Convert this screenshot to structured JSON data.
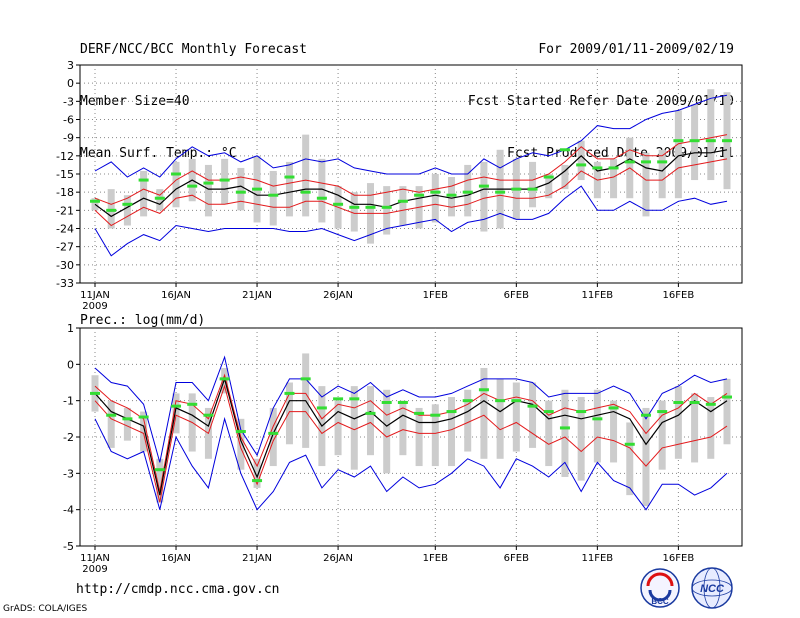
{
  "header": {
    "line1": "DERF/NCC/BCC Monthly Forecast",
    "line2": "Member Size=40",
    "line3": "Mean Surf. Temp.: °C",
    "right1": "For 2009/01/11-2009/02/19",
    "right2": "Fcst Started Refer Date 2009/01/10",
    "right3": "Fcst Produced Date 2009/01/11"
  },
  "footer": {
    "url": "http://cmdp.ncc.cma.gov.cn",
    "credit": "GrADS: COLA/IGES",
    "logo_left_text": "BCC",
    "logo_right_text": "NCC"
  },
  "colors": {
    "ensemble_mean": "#000000",
    "spread": "#e31a1c",
    "extreme": "#0000dd",
    "observed": "#33dd33",
    "box": "#cccccc",
    "grid": "#888888"
  },
  "chart_data": [
    {
      "type": "line",
      "title": "Mean Surf. Temp.: °C",
      "x_start": "11JAN 2009",
      "n_days": 40,
      "xticks": [
        "11JAN",
        "16JAN",
        "21JAN",
        "26JAN",
        "1FEB",
        "6FEB",
        "11FEB",
        "16FEB"
      ],
      "xtick_year": "2009",
      "xtick_index": [
        0,
        5,
        10,
        15,
        21,
        26,
        31,
        36
      ],
      "ylim": [
        -33,
        3
      ],
      "yticks": [
        3,
        0,
        -3,
        -6,
        -9,
        -12,
        -15,
        -18,
        -21,
        -24,
        -27,
        -30,
        -33
      ],
      "series": [
        {
          "name": "max",
          "color": "#0000dd",
          "values": [
            -14.5,
            -13,
            -15.5,
            -14,
            -15.5,
            -12.5,
            -10.5,
            -12,
            -11.5,
            -13,
            -12,
            -14,
            -13.5,
            -12.5,
            -13,
            -12.5,
            -14,
            -14.5,
            -15,
            -15,
            -15,
            -14,
            -15,
            -15,
            -12.5,
            -14,
            -12.5,
            -11.5,
            -12,
            -11,
            -9.5,
            -7,
            -7.5,
            -7.5,
            -6,
            -5,
            -4.5,
            -3.5,
            -2.5,
            -2
          ]
        },
        {
          "name": "upper",
          "color": "#e31a1c",
          "values": [
            -19,
            -20,
            -19,
            -17.5,
            -18.5,
            -16,
            -14.5,
            -16,
            -16,
            -15.5,
            -16,
            -17,
            -16.5,
            -16,
            -16.5,
            -17,
            -18.5,
            -18.5,
            -18,
            -17.5,
            -18,
            -17.5,
            -17,
            -16,
            -15.5,
            -16,
            -16,
            -16,
            -15,
            -13,
            -10.5,
            -12.5,
            -12.5,
            -11,
            -12,
            -12,
            -10,
            -9.5,
            -9,
            -8.5
          ]
        },
        {
          "name": "mean",
          "color": "#000000",
          "values": [
            -20,
            -22,
            -20.5,
            -19,
            -20,
            -17.5,
            -16,
            -17.5,
            -17.5,
            -17,
            -18.5,
            -18.5,
            -18,
            -17.5,
            -17.5,
            -18.5,
            -20,
            -20,
            -20.5,
            -19.5,
            -19,
            -18.5,
            -19,
            -18.5,
            -17.5,
            -17.5,
            -17.5,
            -17.5,
            -16.5,
            -14.5,
            -12,
            -14.5,
            -14,
            -12.5,
            -14,
            -14.5,
            -12,
            -11.5,
            -11.5,
            -11
          ]
        },
        {
          "name": "lower",
          "color": "#e31a1c",
          "values": [
            -21,
            -23.5,
            -22,
            -20.5,
            -21.5,
            -19,
            -18.5,
            -20,
            -20,
            -19.5,
            -20,
            -20.5,
            -20.5,
            -19.5,
            -19.5,
            -20.5,
            -21.5,
            -21.5,
            -21.5,
            -21,
            -20.5,
            -20,
            -20.5,
            -20,
            -19,
            -18.5,
            -19,
            -19,
            -18.5,
            -17,
            -14.5,
            -16,
            -15.5,
            -14,
            -16,
            -16,
            -14,
            -13.5,
            -13,
            -12.5
          ]
        },
        {
          "name": "min",
          "color": "#0000dd",
          "values": [
            -24,
            -28.5,
            -26.5,
            -25,
            -26,
            -23.5,
            -24,
            -24.5,
            -24,
            -24,
            -24,
            -24,
            -24.5,
            -24.5,
            -24,
            -25,
            -26,
            -25,
            -24,
            -23.5,
            -23,
            -22.5,
            -24.5,
            -23,
            -22.5,
            -21.5,
            -22.5,
            -22.5,
            -21.5,
            -19,
            -17,
            -21,
            -21,
            -19.5,
            -21,
            -21,
            -19.5,
            -19,
            -20,
            -19.5
          ]
        },
        {
          "name": "observed",
          "color": "#33dd33",
          "values": [
            -19.5,
            -21,
            -20,
            -16,
            -19,
            -15,
            -17,
            -16.5,
            -16,
            -18,
            -17.5,
            -18.5,
            -15.5,
            -18,
            -19,
            -20,
            -20.5,
            -20.5,
            -20.5,
            -19.5,
            -18.5,
            -18,
            -18.5,
            -18,
            -17,
            -18,
            -17.5,
            -17.5,
            -15.5,
            -11,
            -13.5,
            -14,
            -14,
            -13,
            -13,
            -13,
            -9.5,
            -9.5,
            -9.5,
            -9.5
          ]
        },
        {
          "name": "box_top",
          "color": "#cccccc",
          "values": [
            -19,
            -17.5,
            -18.5,
            -14.5,
            -17.5,
            -13,
            -12.5,
            -13.5,
            -12.5,
            -14,
            -12,
            -14.5,
            -13,
            -8.5,
            -12.5,
            -17,
            -18,
            -16.5,
            -17,
            -17,
            -17,
            -15,
            -15.5,
            -13.5,
            -13,
            -11,
            -12.5,
            -13,
            -15,
            -13.5,
            -9.5,
            -13,
            -12.5,
            -9,
            -11.5,
            -11,
            -4.5,
            -3.5,
            -1,
            -1.5
          ]
        },
        {
          "name": "box_bottom",
          "color": "#cccccc",
          "values": [
            -21,
            -24,
            -23.5,
            -22,
            -21,
            -20.5,
            -19.5,
            -22,
            -20,
            -21,
            -23,
            -23.5,
            -22,
            -22,
            -23,
            -24,
            -24.5,
            -26.5,
            -25,
            -23.5,
            -24,
            -23,
            -22,
            -22,
            -24.5,
            -24,
            -22.5,
            -20.5,
            -19,
            -17.5,
            -16,
            -19,
            -19,
            -19,
            -22,
            -19,
            -19,
            -16,
            -16,
            -17.5
          ]
        }
      ]
    },
    {
      "type": "line",
      "title": "Prec.: log(mm/d)",
      "x_start": "11JAN 2009",
      "n_days": 40,
      "xticks": [
        "11JAN",
        "16JAN",
        "21JAN",
        "26JAN",
        "1FEB",
        "6FEB",
        "11FEB",
        "16FEB"
      ],
      "xtick_year": "2009",
      "xtick_index": [
        0,
        5,
        10,
        15,
        21,
        26,
        31,
        36
      ],
      "ylim": [
        -5,
        1
      ],
      "yticks": [
        1,
        0,
        -1,
        -2,
        -3,
        -4,
        -5
      ],
      "series": [
        {
          "name": "max",
          "color": "#0000dd",
          "values": [
            -0.1,
            -0.5,
            -0.6,
            -1.1,
            -2.7,
            -0.5,
            -0.5,
            -1.0,
            0.2,
            -1.8,
            -2.5,
            -1.2,
            -0.4,
            -0.4,
            -0.9,
            -0.6,
            -0.8,
            -0.5,
            -0.9,
            -0.7,
            -0.9,
            -0.9,
            -0.8,
            -0.6,
            -0.4,
            -0.4,
            -0.4,
            -0.5,
            -0.9,
            -0.8,
            -0.8,
            -0.8,
            -0.6,
            -0.8,
            -1.5,
            -0.8,
            -0.6,
            -0.3,
            -0.5,
            -0.4
          ]
        },
        {
          "name": "upper",
          "color": "#e31a1c",
          "values": [
            -0.6,
            -1.0,
            -1.2,
            -1.5,
            -3.5,
            -1.0,
            -1.1,
            -1.5,
            -0.3,
            -2.0,
            -2.8,
            -1.7,
            -0.8,
            -0.8,
            -1.5,
            -1.1,
            -1.2,
            -1.0,
            -1.4,
            -1.2,
            -1.4,
            -1.4,
            -1.3,
            -1.1,
            -0.8,
            -1.0,
            -0.9,
            -1.0,
            -1.4,
            -1.2,
            -1.3,
            -1.2,
            -1.1,
            -1.3,
            -1.9,
            -1.4,
            -1.2,
            -0.8,
            -1.1,
            -0.8
          ]
        },
        {
          "name": "mean",
          "color": "#000000",
          "values": [
            -0.8,
            -1.3,
            -1.5,
            -1.7,
            -3.6,
            -1.2,
            -1.4,
            -1.7,
            -0.4,
            -2.1,
            -3.1,
            -1.9,
            -1.0,
            -1.0,
            -1.7,
            -1.3,
            -1.5,
            -1.3,
            -1.7,
            -1.4,
            -1.6,
            -1.6,
            -1.5,
            -1.3,
            -1.0,
            -1.3,
            -1.0,
            -1.1,
            -1.5,
            -1.4,
            -1.5,
            -1.4,
            -1.3,
            -1.5,
            -2.2,
            -1.6,
            -1.4,
            -1.0,
            -1.3,
            -1.0
          ]
        },
        {
          "name": "lower",
          "color": "#e31a1c",
          "values": [
            -1.0,
            -1.5,
            -1.7,
            -1.9,
            -3.8,
            -1.4,
            -1.6,
            -1.9,
            -0.6,
            -2.3,
            -3.3,
            -2.1,
            -1.3,
            -1.3,
            -1.9,
            -1.6,
            -1.8,
            -1.6,
            -2.0,
            -1.8,
            -1.9,
            -1.9,
            -1.8,
            -1.6,
            -1.4,
            -1.8,
            -1.6,
            -1.9,
            -2.2,
            -2.0,
            -2.4,
            -2.0,
            -2.1,
            -2.3,
            -2.8,
            -2.3,
            -2.2,
            -2.1,
            -2.0,
            -1.7
          ]
        },
        {
          "name": "min",
          "color": "#0000dd",
          "values": [
            -1.5,
            -2.4,
            -2.6,
            -2.4,
            -4.0,
            -2.0,
            -2.8,
            -3.4,
            -1.5,
            -3.0,
            -4.0,
            -3.5,
            -2.7,
            -2.5,
            -3.4,
            -2.9,
            -3.1,
            -2.8,
            -3.5,
            -3.1,
            -3.4,
            -3.3,
            -3.0,
            -2.6,
            -2.8,
            -3.4,
            -2.6,
            -2.8,
            -3.1,
            -2.7,
            -3.5,
            -2.7,
            -3.2,
            -3.4,
            -4.0,
            -3.3,
            -3.3,
            -3.6,
            -3.4,
            -3.0
          ]
        },
        {
          "name": "observed",
          "color": "#33dd33",
          "values": [
            -0.8,
            -1.4,
            -1.5,
            -1.45,
            -2.9,
            -1.15,
            -1.1,
            -1.4,
            -0.4,
            -1.85,
            -3.2,
            -1.9,
            -0.8,
            -0.4,
            -1.2,
            -0.95,
            -0.95,
            -1.35,
            -1.05,
            -1.05,
            -1.35,
            -1.4,
            -1.3,
            -1.0,
            -0.7,
            -1.0,
            -1.0,
            -1.15,
            -1.3,
            -1.75,
            -1.3,
            -1.5,
            -1.2,
            -2.2,
            -1.4,
            -1.3,
            -1.05,
            -1.05,
            -1.1,
            -0.9
          ]
        },
        {
          "name": "box_top",
          "color": "#cccccc",
          "values": [
            -0.3,
            -1.0,
            -1.2,
            -1.3,
            -2.6,
            -0.8,
            -0.8,
            -1.2,
            -0.1,
            -1.5,
            -2.6,
            -1.2,
            -0.5,
            0.3,
            -0.6,
            -1.0,
            -0.6,
            -0.6,
            -0.7,
            -1.0,
            -1.2,
            -1.1,
            -0.9,
            -0.7,
            -0.1,
            -0.4,
            -0.5,
            -0.5,
            -1.0,
            -0.7,
            -0.9,
            -0.7,
            -1.0,
            -1.6,
            -1.2,
            -1.0,
            -0.6,
            -0.8,
            -0.9,
            -0.4
          ]
        },
        {
          "name": "box_bottom",
          "color": "#cccccc",
          "values": [
            -1.3,
            -2.3,
            -2.1,
            -2.4,
            -3.8,
            -1.9,
            -2.4,
            -2.6,
            -0.8,
            -2.9,
            -3.4,
            -2.8,
            -2.2,
            -2.3,
            -2.8,
            -2.5,
            -2.9,
            -2.5,
            -3.0,
            -2.5,
            -2.8,
            -2.8,
            -2.8,
            -2.4,
            -2.6,
            -2.6,
            -2.4,
            -2.3,
            -2.8,
            -3.1,
            -3.2,
            -2.7,
            -2.7,
            -3.6,
            -3.9,
            -2.9,
            -2.6,
            -2.7,
            -2.6,
            -2.2
          ]
        }
      ]
    }
  ]
}
